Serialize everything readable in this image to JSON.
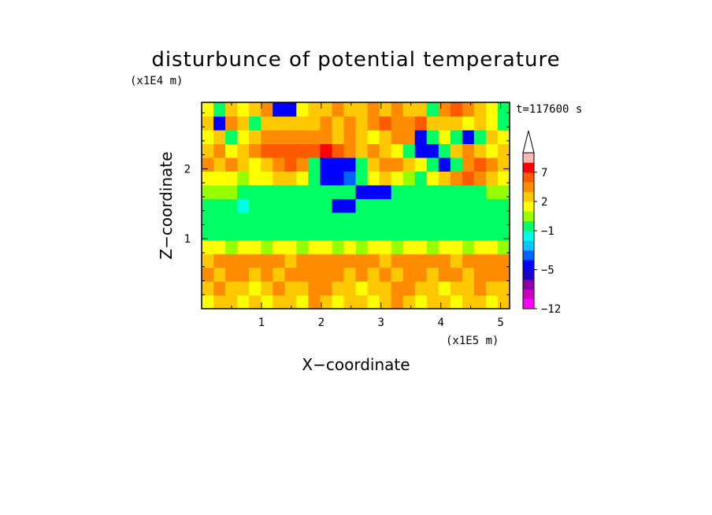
{
  "chart_data": {
    "type": "heatmap",
    "title": "disturbunce of potential temperature",
    "xlabel": "X−coordinate",
    "ylabel": "Z−coordinate",
    "x_unit": "(x1E5 m)",
    "y_unit": "(x1E4 m)",
    "time_label": "t=117600 s",
    "xlim": [
      0,
      5.15
    ],
    "ylim": [
      0,
      2.95
    ],
    "x_ticks": [
      1,
      2,
      3,
      4,
      5
    ],
    "x_tick_labels": [
      "1",
      "2",
      "3",
      "4",
      "5"
    ],
    "y_ticks": [
      1,
      2
    ],
    "y_tick_labels": [
      "1",
      "2"
    ],
    "colorbar": {
      "levels": [
        -12,
        -10,
        -8,
        -6,
        -5,
        -4,
        -3,
        -2,
        -1,
        0,
        1,
        2,
        3,
        5,
        7,
        9,
        11
      ],
      "tick_values": [
        -12,
        -5,
        -1,
        2,
        7
      ],
      "tick_labels": [
        "−12",
        "−5",
        "−1",
        "2",
        "7"
      ],
      "colors": [
        "#ff00ff",
        "#c800c8",
        "#8c00aa",
        "#1e00c8",
        "#0000ff",
        "#0064ff",
        "#00c8ff",
        "#00ffe6",
        "#00ff64",
        "#96ff00",
        "#ffff00",
        "#ffc800",
        "#ff8c00",
        "#ff5a00",
        "#ff0000",
        "#ffb4b4"
      ],
      "extend": "max"
    },
    "z_rows_note": "",
    "field": {
      "nx": 26,
      "nz": 15,
      "values": [
        [
          1,
          2,
          2,
          1,
          2,
          1,
          2,
          2,
          1,
          3,
          2,
          1,
          2,
          2,
          1,
          2,
          3,
          2,
          1,
          2,
          2,
          1,
          2,
          2,
          1,
          2
        ],
        [
          2,
          3,
          2,
          2,
          1,
          2,
          3,
          2,
          2,
          3,
          3,
          2,
          2,
          1,
          2,
          2,
          3,
          3,
          2,
          2,
          1,
          2,
          2,
          3,
          2,
          2
        ],
        [
          3,
          2,
          3,
          3,
          2,
          3,
          2,
          3,
          3,
          4,
          3,
          3,
          2,
          3,
          2,
          3,
          2,
          3,
          3,
          2,
          3,
          3,
          2,
          3,
          3,
          3
        ],
        [
          2,
          3,
          3,
          4,
          3,
          3,
          3,
          2,
          3,
          3,
          4,
          3,
          3,
          3,
          3,
          2,
          3,
          3,
          4,
          3,
          3,
          2,
          3,
          3,
          4,
          3
        ],
        [
          1,
          1,
          0,
          1,
          1,
          0,
          1,
          1,
          0,
          1,
          1,
          0,
          1,
          0,
          1,
          1,
          0,
          1,
          1,
          0,
          1,
          1,
          0,
          1,
          1,
          0
        ],
        [
          -1,
          -1,
          -1,
          -1,
          -1,
          -1,
          -1,
          -1,
          -1,
          -1,
          -1,
          -1,
          -1,
          -1,
          -1,
          -1,
          -1,
          -1,
          -1,
          -1,
          -1,
          -1,
          -1,
          -1,
          -1,
          -1
        ],
        [
          -1,
          -1,
          -1,
          -1,
          -1,
          -1,
          -1,
          -1,
          -1,
          -1,
          -1,
          -1,
          -1,
          -1,
          -1,
          -1,
          -1,
          -1,
          -1,
          -1,
          -1,
          -1,
          -1,
          -1,
          -1,
          -1
        ],
        [
          -1,
          -1,
          -1,
          -2,
          -1,
          -1,
          -1,
          -1,
          -1,
          -1,
          -1,
          -5,
          -5,
          -1,
          -1,
          -1,
          -1,
          -1,
          -1,
          -1,
          -1,
          -1,
          -1,
          -1,
          -1,
          -1
        ],
        [
          0,
          0,
          0,
          -1,
          -1,
          -1,
          -1,
          -1,
          -1,
          -1,
          -1,
          -1,
          -1,
          -5,
          -5,
          -5,
          -1,
          -1,
          -1,
          -1,
          -1,
          -1,
          -1,
          -1,
          0,
          0
        ],
        [
          1,
          1,
          1,
          0,
          1,
          1,
          2,
          2,
          1,
          -1,
          -5,
          -5,
          -4,
          -1,
          1,
          2,
          1,
          0,
          -1,
          1,
          2,
          3,
          5,
          3,
          2,
          1
        ],
        [
          3,
          2,
          3,
          2,
          1,
          2,
          3,
          5,
          3,
          -1,
          -5,
          -5,
          -5,
          -1,
          2,
          3,
          3,
          2,
          1,
          -1,
          -5,
          -1,
          3,
          5,
          3,
          2
        ],
        [
          2,
          3,
          1,
          2,
          3,
          5,
          5,
          5,
          5,
          5,
          7,
          5,
          3,
          2,
          3,
          2,
          1,
          -1,
          -5,
          -5,
          -1,
          2,
          3,
          2,
          1,
          2
        ],
        [
          1,
          2,
          -1,
          1,
          2,
          3,
          3,
          3,
          3,
          3,
          3,
          2,
          3,
          2,
          1,
          2,
          3,
          3,
          -5,
          -1,
          1,
          -1,
          -5,
          -1,
          2,
          1
        ],
        [
          2,
          -5,
          3,
          2,
          -1,
          2,
          2,
          2,
          2,
          2,
          3,
          2,
          3,
          2,
          3,
          5,
          3,
          3,
          5,
          2,
          2,
          2,
          1,
          2,
          1,
          -1
        ],
        [
          1,
          -1,
          2,
          1,
          2,
          3,
          -5,
          -5,
          1,
          2,
          2,
          3,
          2,
          2,
          3,
          2,
          3,
          2,
          2,
          -1,
          3,
          5,
          3,
          2,
          1,
          -1
        ]
      ]
    }
  }
}
